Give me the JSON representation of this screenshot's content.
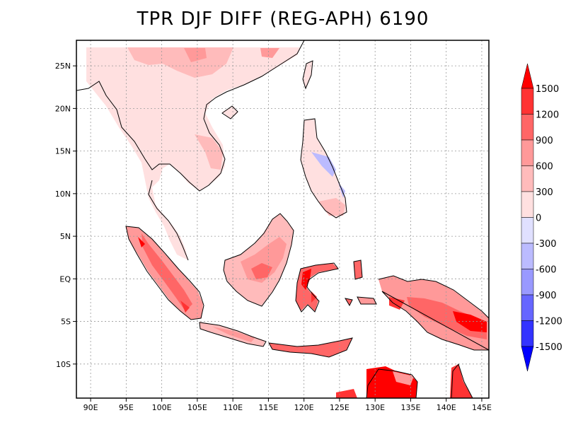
{
  "title": "TPR DJF DIFF (REG-APH) 6190",
  "map": {
    "lon_range": [
      88,
      146
    ],
    "lat_range": [
      -14,
      28
    ],
    "lon_ticks": [
      {
        "value": 90,
        "label": "90E"
      },
      {
        "value": 95,
        "label": "95E"
      },
      {
        "value": 100,
        "label": "100E"
      },
      {
        "value": 105,
        "label": "105E"
      },
      {
        "value": 110,
        "label": "110E"
      },
      {
        "value": 115,
        "label": "115E"
      },
      {
        "value": 120,
        "label": "120E"
      },
      {
        "value": 125,
        "label": "125E"
      },
      {
        "value": 130,
        "label": "130E"
      },
      {
        "value": 135,
        "label": "135E"
      },
      {
        "value": 140,
        "label": "140E"
      },
      {
        "value": 145,
        "label": "145E"
      }
    ],
    "lat_ticks": [
      {
        "value": 25,
        "label": "25N"
      },
      {
        "value": 20,
        "label": "20N"
      },
      {
        "value": 15,
        "label": "15N"
      },
      {
        "value": 10,
        "label": "10N"
      },
      {
        "value": 5,
        "label": "5N"
      },
      {
        "value": 0,
        "label": "EQ"
      },
      {
        "value": -5,
        "label": "5S"
      },
      {
        "value": -10,
        "label": "10S"
      }
    ],
    "grid": true
  },
  "colorbar": {
    "levels": [
      {
        "label": "1500"
      },
      {
        "label": "1200"
      },
      {
        "label": "900"
      },
      {
        "label": "600"
      },
      {
        "label": "300"
      },
      {
        "label": "0"
      },
      {
        "label": "-300"
      },
      {
        "label": "-600"
      },
      {
        "label": "-900"
      },
      {
        "label": "-1200"
      },
      {
        "label": "-1500"
      }
    ],
    "colors": [
      "#ff0000",
      "#ff3333",
      "#ff6666",
      "#ff9999",
      "#ffbbbb",
      "#ffe0e0",
      "#e0e0ff",
      "#bbbbff",
      "#9999ff",
      "#6666ff",
      "#3333ff",
      "#0000ff"
    ]
  }
}
